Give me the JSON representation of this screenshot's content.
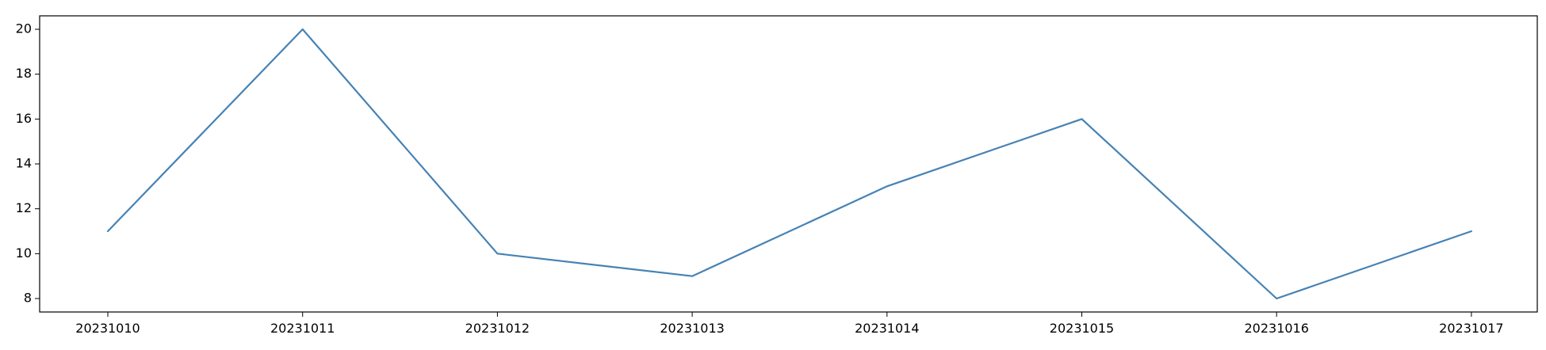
{
  "chart_data": {
    "type": "line",
    "categories": [
      "20231010",
      "20231011",
      "20231012",
      "20231013",
      "20231014",
      "20231015",
      "20231016",
      "20231017"
    ],
    "series": [
      {
        "values": [
          11,
          20,
          10,
          9,
          13,
          16,
          8,
          11
        ]
      }
    ],
    "title": "",
    "xlabel": "",
    "ylabel": "",
    "ylim": [
      7.4,
      20.6
    ],
    "yticks": [
      "8",
      "10",
      "12",
      "14",
      "16",
      "18",
      "20"
    ],
    "grid": false,
    "legend": false,
    "colors": {
      "line": "#4682b4",
      "axes": "#000000"
    }
  }
}
